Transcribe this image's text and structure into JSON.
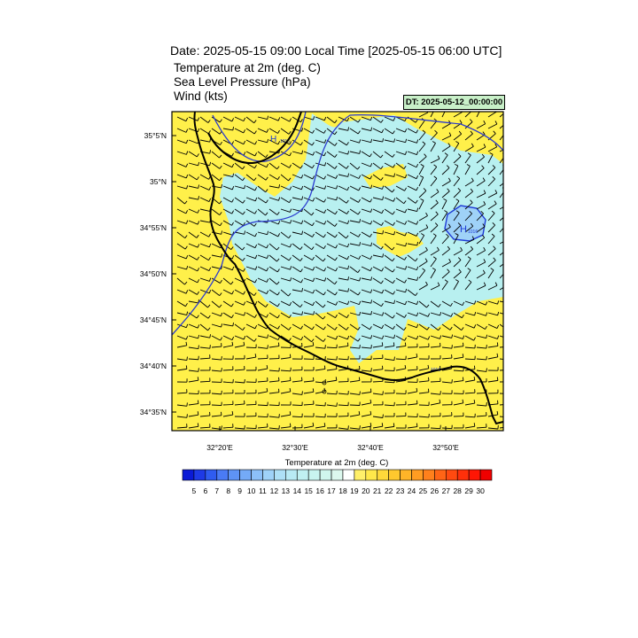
{
  "header": {
    "title": "Date: 2025-05-15  09:00 Local Time [2025-05-15  06:00 UTC]",
    "fields": [
      "Temperature at 2m   (deg. C)",
      "Sea Level Pressure   (hPa)",
      "Wind   (kts)"
    ],
    "dt_label": "DT: 2025-05-12_00:00:00"
  },
  "map": {
    "lat_labels": [
      "35°5'N",
      "35°N",
      "34°55'N",
      "34°50'N",
      "34°45'N",
      "34°40'N",
      "34°35'N"
    ],
    "lon_labels": [
      "32°20'E",
      "32°30'E",
      "32°40'E",
      "32°50'E"
    ],
    "isobar_labels": [
      "1015",
      "1016",
      "1016"
    ],
    "high_marker": "H"
  },
  "colorbar": {
    "title": "Temperature at 2m  (deg. C)",
    "ticks": [
      "5",
      "6",
      "7",
      "8",
      "9",
      "10",
      "11",
      "12",
      "13",
      "14",
      "15",
      "16",
      "17",
      "18",
      "19",
      "20",
      "21",
      "22",
      "23",
      "24",
      "25",
      "26",
      "27",
      "28",
      "29",
      "30"
    ],
    "colors": [
      "#0a1ad6",
      "#1e3ae6",
      "#2f5cf0",
      "#4a7bf5",
      "#5e93f5",
      "#74aaf7",
      "#8cc0f8",
      "#9fd2f8",
      "#aee0f6",
      "#b8eaf4",
      "#c0f0f2",
      "#c8f4f0",
      "#d0f6ee",
      "#dcf8ee",
      "#ffffff",
      "#fff06a",
      "#ffe84a",
      "#ffd93a",
      "#ffc82e",
      "#ffb428",
      "#ff9c22",
      "#ff801c",
      "#ff6416",
      "#ff4a10",
      "#ff300a",
      "#ff1604",
      "#f00000"
    ]
  },
  "colors": {
    "land_warm": "#fff04a",
    "land_cool": "#b8f0f0",
    "ocean_warm": "#fff04a",
    "isobar": "#1e3ad6"
  }
}
